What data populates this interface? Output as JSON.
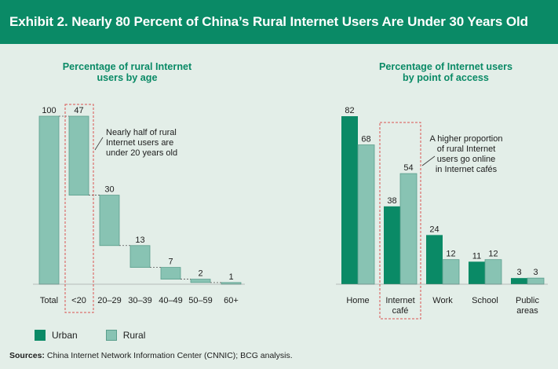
{
  "header": {
    "title": "Exhibit 2. Nearly 80 Percent of China’s Rural Internet Users Are Under 30 Years Old"
  },
  "colors": {
    "urban": "#0a8a66",
    "rural": "#88c3b3",
    "rural_border": "#5a9e8c",
    "highlight": "#d9534f"
  },
  "legend": {
    "urban": "Urban",
    "rural": "Rural"
  },
  "source": {
    "label": "Sources:",
    "text": " China Internet Network Information Center (CNNIC); BCG analysis."
  },
  "chart_data": [
    {
      "type": "bar",
      "subtype": "waterfall",
      "title_lines": [
        "Percentage of rural Internet",
        "users by age"
      ],
      "categories": [
        "Total",
        "<20",
        "20–29",
        "30–39",
        "40–49",
        "50–59",
        "60+"
      ],
      "values": [
        100,
        47,
        30,
        13,
        7,
        2,
        1
      ],
      "value_labels": [
        "100",
        "47",
        "30",
        "13",
        "7",
        "2",
        "1"
      ],
      "highlight_category": "<20",
      "annotation_lines": [
        "Nearly half of rural",
        "Internet users are",
        "under 20 years old"
      ],
      "ylim": [
        0,
        100
      ]
    },
    {
      "type": "bar",
      "subtype": "grouped",
      "title_lines": [
        "Percentage of Internet users",
        "by point of access"
      ],
      "categories": [
        [
          "Home"
        ],
        [
          "Internet",
          "café"
        ],
        [
          "Work"
        ],
        [
          "School"
        ],
        [
          "Public",
          "areas"
        ]
      ],
      "series": [
        {
          "name": "Urban",
          "values": [
            82,
            38,
            24,
            11,
            3
          ]
        },
        {
          "name": "Rural",
          "values": [
            68,
            54,
            12,
            12,
            3
          ]
        }
      ],
      "highlight_category": "Internet café",
      "annotation_lines": [
        "A higher proportion",
        "of rural Internet",
        "users go online",
        "in Internet cafés"
      ],
      "ylim": [
        0,
        82
      ]
    }
  ]
}
